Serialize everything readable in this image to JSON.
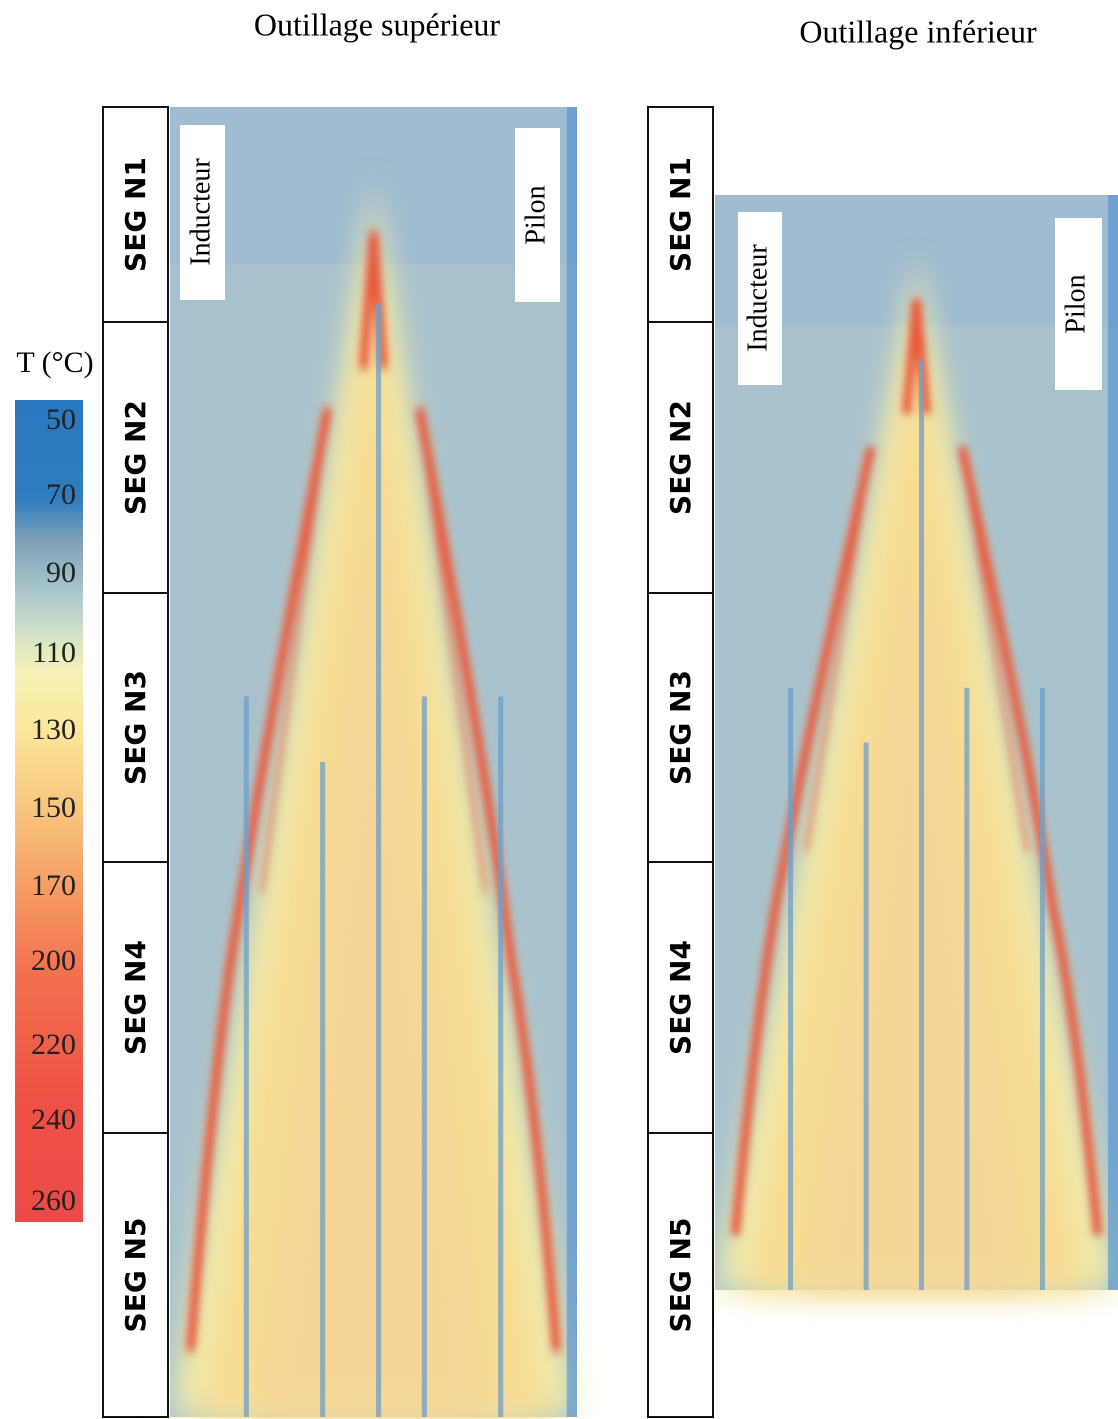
{
  "panels": [
    {
      "title": "Outillage supérieur",
      "segments": [
        "SEG N1",
        "SEG N2",
        "SEG N3",
        "SEG N4",
        "SEG N5"
      ],
      "labels": [
        "Inducteur",
        "Pilon"
      ]
    },
    {
      "title": "Outillage inférieur",
      "segments": [
        "SEG N1",
        "SEG N2",
        "SEG N3",
        "SEG N4",
        "SEG N5"
      ],
      "labels": [
        "Inducteur",
        "Pilon"
      ]
    }
  ],
  "legend": {
    "title": "T (°C)",
    "labels": [
      "50",
      "70",
      "90",
      "110",
      "130",
      "150",
      "170",
      "200",
      "220",
      "240",
      "260"
    ]
  }
}
